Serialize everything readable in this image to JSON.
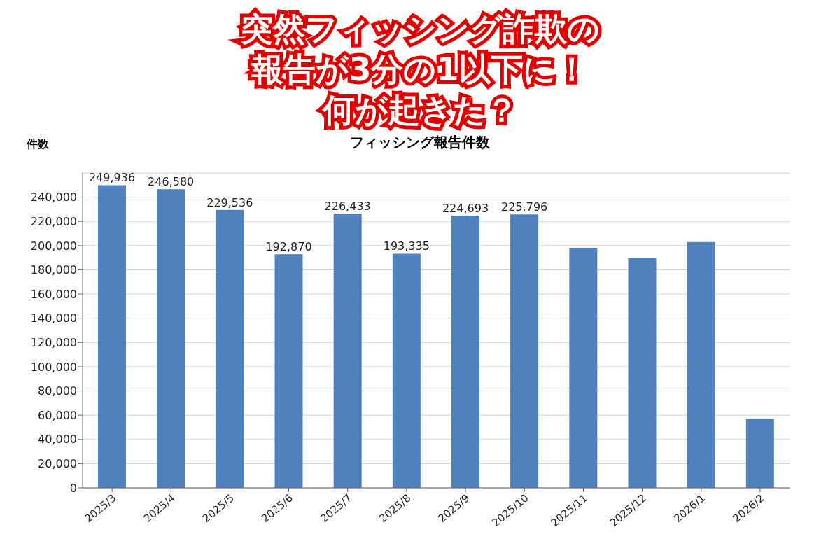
{
  "chart_data": {
    "type": "bar",
    "title": "フィッシング報告件数",
    "ylabel": "件数",
    "annotations": [
      "突然フィッシング詐欺の",
      "報告が3分の1以下に！",
      "何が起きた？"
    ],
    "categories": [
      "2025/3",
      "2025/4",
      "2025/5",
      "2025/6",
      "2025/7",
      "2025/8",
      "2025/9",
      "2025/10",
      "2025/11",
      "2025/12",
      "2026/1",
      "2026/2"
    ],
    "values": [
      249936,
      246580,
      229536,
      192870,
      226433,
      193335,
      224693,
      225796,
      198000,
      190000,
      203000,
      57000
    ],
    "value_labels": [
      "249,936",
      "246,580",
      "229,536",
      "192,870",
      "226,433",
      "193,335",
      "224,693",
      "225,796",
      null,
      null,
      null,
      null
    ],
    "color": "#4f81bd",
    "ylim": [
      0,
      260000
    ],
    "yticks": [
      0,
      {
        "value": 20000,
        "label": "20,000"
      },
      {
        "value": 40000,
        "label": "40,000"
      },
      {
        "value": 60000,
        "label": "60,000"
      },
      {
        "value": 80000,
        "label": "80,000"
      },
      {
        "value": 100000,
        "label": "100,000"
      },
      {
        "value": 120000,
        "label": "120,000"
      },
      {
        "value": 140000,
        "label": "140,000"
      },
      {
        "value": 160000,
        "label": "160,000"
      },
      {
        "value": 180000,
        "label": "180,000"
      },
      {
        "value": 200000,
        "label": "200,000"
      },
      {
        "value": 220000,
        "label": "220,000"
      },
      {
        "value": 240000,
        "label": "240,000"
      }
    ],
    "grid": "y"
  }
}
